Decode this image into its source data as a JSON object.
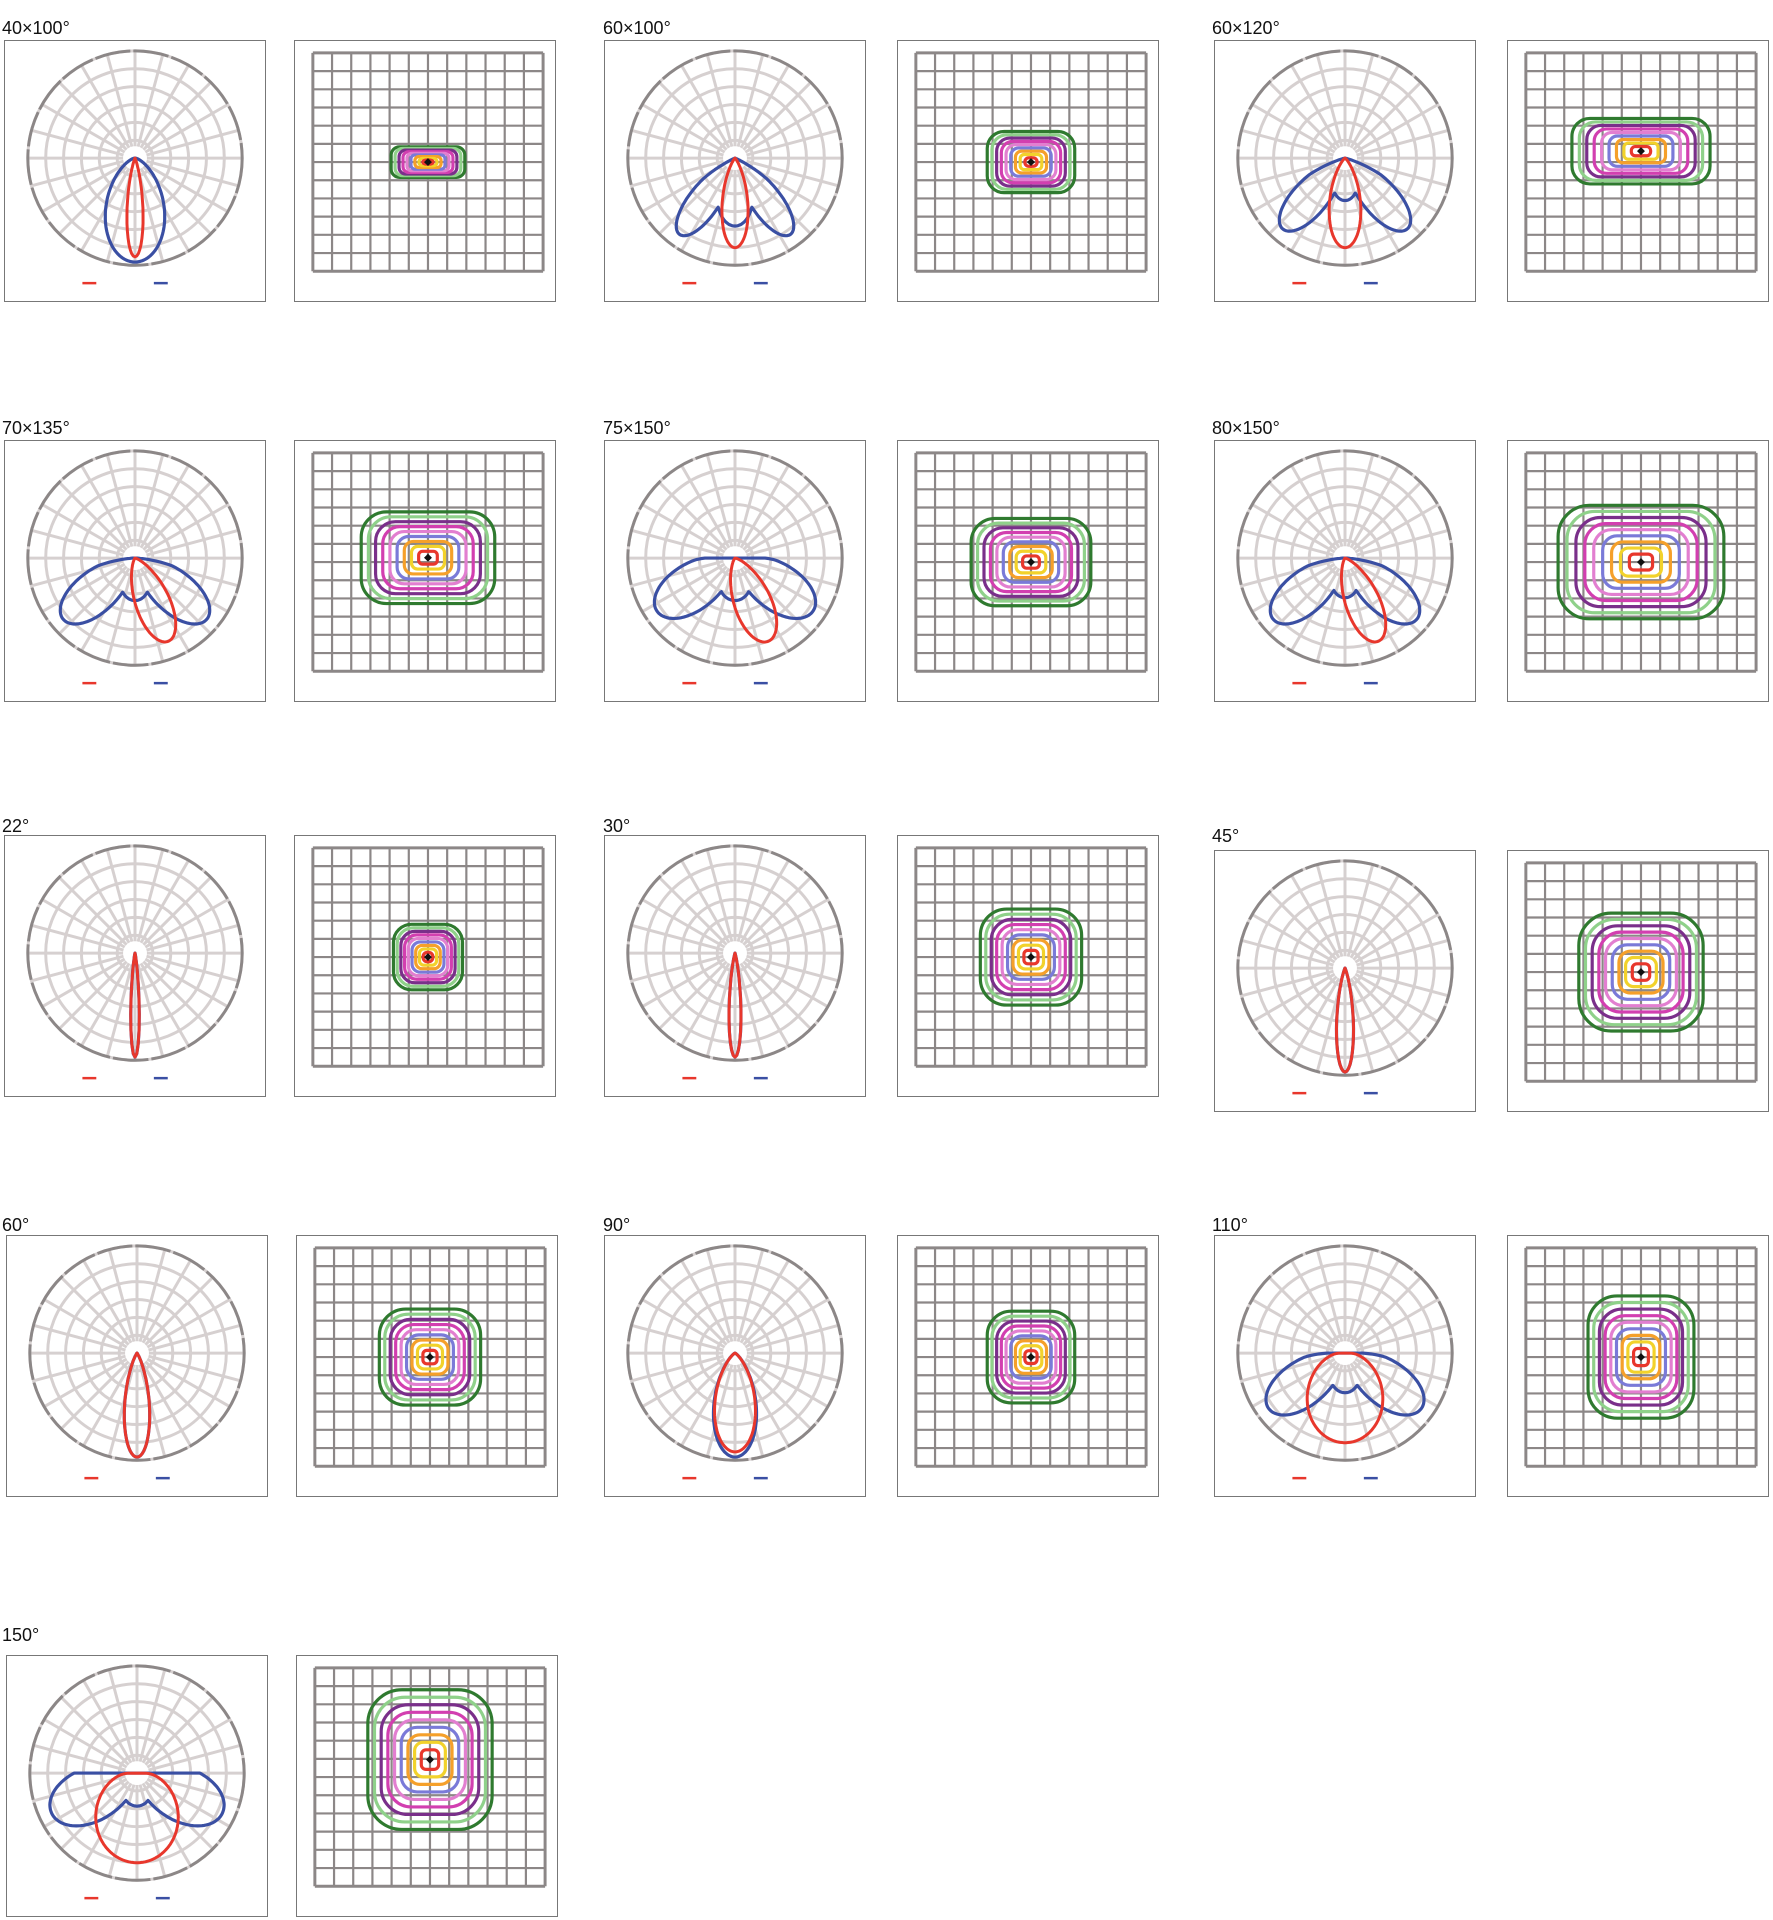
{
  "colors": {
    "c0_180": "#e8372c",
    "c90_270": "#3a4fa3",
    "polar_grid": "#d6d0d0",
    "polar_rim": "#8c8787",
    "iso_grid": "#8c8787",
    "iso_rings": [
      "#2f7a2f",
      "#8fd18a",
      "#7a2f8a",
      "#d23fb0",
      "#e27fd0",
      "#7a7ad8",
      "#f5a02a",
      "#f2d22b",
      "#e8372c"
    ]
  },
  "groups": [
    {
      "title": "40×100°",
      "style": "narrow",
      "red_deg": 10,
      "blue_deg": 37,
      "blue_notch": 0.95,
      "iso_rx": 0.16,
      "iso_ry": 0.07,
      "iso_cy": 0.0
    },
    {
      "title": "60×100°",
      "style": "batwing",
      "red_deg": 18,
      "blue_deg": 40,
      "blue_notch": 0.72,
      "iso_rx": 0.19,
      "iso_ry": 0.14,
      "iso_cy": 0.0
    },
    {
      "title": "60×120°",
      "style": "batwing",
      "red_deg": 22,
      "blue_deg": 46,
      "blue_notch": 0.45,
      "iso_rx": 0.3,
      "iso_ry": 0.15,
      "iso_cy": 0.05
    },
    {
      "title": "70×135°",
      "style": "tilt",
      "red_deg": 24,
      "blue_deg": 55,
      "blue_notch": 0.45,
      "iso_rx": 0.29,
      "iso_ry": 0.21,
      "iso_cy": 0.02
    },
    {
      "title": "75×150°",
      "style": "tilt",
      "red_deg": 26,
      "blue_deg": 62,
      "blue_notch": 0.45,
      "iso_rx": 0.26,
      "iso_ry": 0.2,
      "iso_cy": 0.0
    },
    {
      "title": "80×150°",
      "style": "tilt",
      "red_deg": 24,
      "blue_deg": 55,
      "blue_notch": 0.42,
      "iso_rx": 0.36,
      "iso_ry": 0.26,
      "iso_cy": 0.0
    },
    {
      "title": "22°",
      "style": "spot",
      "red_deg": 5,
      "blue_deg": 5,
      "blue_notch": 1.0,
      "iso_rx": 0.15,
      "iso_ry": 0.15,
      "iso_cy": 0.0
    },
    {
      "title": "30°",
      "style": "spot",
      "red_deg": 7,
      "blue_deg": 7,
      "blue_notch": 1.0,
      "iso_rx": 0.22,
      "iso_ry": 0.22,
      "iso_cy": 0.0
    },
    {
      "title": "45°",
      "style": "spot",
      "red_deg": 10,
      "blue_deg": 10,
      "blue_notch": 1.0,
      "iso_rx": 0.27,
      "iso_ry": 0.27,
      "iso_cy": 0.0
    },
    {
      "title": "60°",
      "style": "spot",
      "red_deg": 15,
      "blue_deg": 15,
      "blue_notch": 1.0,
      "iso_rx": 0.22,
      "iso_ry": 0.22,
      "iso_cy": 0.0
    },
    {
      "title": "90°",
      "style": "wide",
      "red_deg": 26,
      "blue_deg": 26,
      "blue_notch": 1.0,
      "iso_rx": 0.19,
      "iso_ry": 0.21,
      "iso_cy": 0.0
    },
    {
      "title": "110°",
      "style": "batwing",
      "red_deg": 60,
      "blue_deg": 60,
      "blue_notch": 0.42,
      "iso_rx": 0.23,
      "iso_ry": 0.28,
      "iso_cy": 0.0
    },
    {
      "title": "150°",
      "style": "batwing",
      "red_deg": 68,
      "blue_deg": 72,
      "blue_notch": 0.35,
      "iso_rx": 0.27,
      "iso_ry": 0.32,
      "iso_cy": 0.08
    }
  ]
}
